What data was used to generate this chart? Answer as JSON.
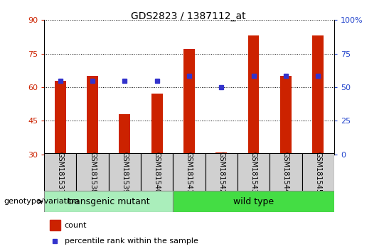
{
  "title": "GDS2823 / 1387112_at",
  "samples": [
    "GSM181537",
    "GSM181538",
    "GSM181539",
    "GSM181540",
    "GSM181541",
    "GSM181542",
    "GSM181543",
    "GSM181544",
    "GSM181545"
  ],
  "counts": [
    63,
    65,
    48,
    57,
    77,
    31,
    83,
    65,
    83
  ],
  "percentiles": [
    63,
    63,
    63,
    63,
    65,
    60,
    65,
    65,
    65
  ],
  "transgenic_count": 4,
  "ylim_min": 30,
  "ylim_max": 90,
  "yticks_left": [
    30,
    45,
    60,
    75,
    90
  ],
  "yticks_right": [
    0,
    25,
    50,
    75,
    100
  ],
  "bar_color": "#cc2200",
  "dot_color": "#3333cc",
  "transgenic_color": "#aaeebb",
  "wildtype_color": "#44dd44",
  "sample_box_color": "#d0d0d0",
  "tick_color_left": "#cc2200",
  "tick_color_right": "#2244cc",
  "bar_width": 0.35,
  "title_fontsize": 10,
  "tick_fontsize": 8,
  "label_fontsize": 8,
  "group_fontsize": 9,
  "legend_fontsize": 8
}
